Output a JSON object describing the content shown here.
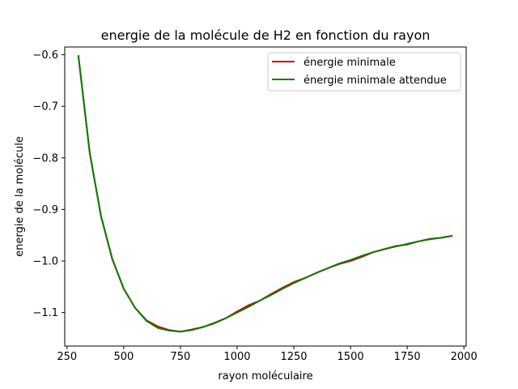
{
  "chart_data": {
    "type": "line",
    "title": "energie de la molécule de H2 en fonction du rayon",
    "xlabel": "rayon moléculaire",
    "ylabel": "energie de la molécule",
    "xlim": [
      240,
      2010
    ],
    "ylim": [
      -1.165,
      -0.585
    ],
    "xticks": [
      250,
      500,
      750,
      1000,
      1250,
      1500,
      1750,
      2000
    ],
    "yticks": [
      -1.1,
      -1.0,
      -0.9,
      -0.8,
      -0.7,
      -0.6
    ],
    "xtick_labels": [
      "250",
      "500",
      "750",
      "1000",
      "1250",
      "1500",
      "1750",
      "2000"
    ],
    "ytick_labels": [
      "−1.1",
      "−1.0",
      "−0.9",
      "−0.8",
      "−0.7",
      "−0.6"
    ],
    "grid": false,
    "legend_position": "top-right",
    "x": [
      300,
      350,
      400,
      450,
      500,
      550,
      600,
      650,
      700,
      750,
      800,
      850,
      900,
      950,
      1000,
      1050,
      1100,
      1150,
      1200,
      1250,
      1300,
      1350,
      1400,
      1450,
      1500,
      1550,
      1600,
      1650,
      1700,
      1750,
      1800,
      1850,
      1900,
      1950
    ],
    "series": [
      {
        "name": "énergie minimale",
        "color": "#d40000",
        "values": [
          -0.601,
          -0.789,
          -0.913,
          -0.997,
          -1.054,
          -1.091,
          -1.115,
          -1.127,
          -1.134,
          -1.137,
          -1.133,
          -1.128,
          -1.12,
          -1.111,
          -1.098,
          -1.086,
          -1.077,
          -1.064,
          -1.052,
          -1.041,
          -1.033,
          -1.023,
          -1.014,
          -1.006,
          -1.0,
          -0.992,
          -0.983,
          -0.977,
          -0.971,
          -0.968,
          -0.962,
          -0.957,
          -0.955,
          -0.951
        ]
      },
      {
        "name": "énergie minimale attendue",
        "color": "#0a7d00",
        "values": [
          -0.601,
          -0.79,
          -0.913,
          -0.996,
          -1.054,
          -1.091,
          -1.116,
          -1.13,
          -1.135,
          -1.137,
          -1.134,
          -1.128,
          -1.121,
          -1.111,
          -1.1,
          -1.089,
          -1.077,
          -1.066,
          -1.054,
          -1.043,
          -1.033,
          -1.023,
          -1.014,
          -1.005,
          -0.998,
          -0.99,
          -0.983,
          -0.977,
          -0.972,
          -0.967,
          -0.962,
          -0.958,
          -0.955,
          -0.951
        ]
      }
    ]
  }
}
